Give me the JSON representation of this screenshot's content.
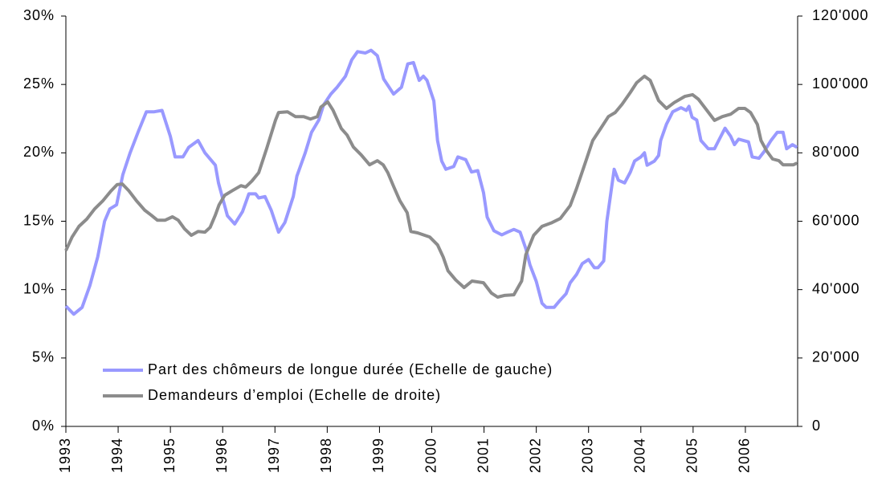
{
  "chart_data": {
    "type": "line",
    "xlim": [
      1993,
      2007
    ],
    "xticks": [
      1993,
      1994,
      1995,
      1996,
      1997,
      1998,
      1999,
      2000,
      2001,
      2002,
      2003,
      2004,
      2005,
      2006
    ],
    "ylim": [
      0,
      30
    ],
    "yticks": [
      {
        "value": 0,
        "label": "0%"
      },
      {
        "value": 5,
        "label": "5%"
      },
      {
        "value": 10,
        "label": "10%"
      },
      {
        "value": 15,
        "label": "15%"
      },
      {
        "value": 20,
        "label": "20%"
      },
      {
        "value": 25,
        "label": "25%"
      },
      {
        "value": 30,
        "label": "30%"
      }
    ],
    "y2lim": [
      0,
      120000
    ],
    "y2ticks": [
      0,
      {
        "value": 20000,
        "label": "20'000"
      },
      {
        "value": 40000,
        "label": "40'000"
      },
      {
        "value": 60000,
        "label": "60'000"
      },
      {
        "value": 80000,
        "label": "80'000"
      },
      {
        "value": 100000,
        "label": "100'000"
      },
      {
        "value": 120000,
        "label": "120'000"
      }
    ],
    "legend": "lower-left",
    "series": [
      {
        "name": "Part des chômeurs de longue durée (Echelle de gauche)",
        "color": "#9999ff",
        "x": [
          1993.0,
          1993.15,
          1993.31,
          1993.46,
          1993.61,
          1993.74,
          1993.84,
          1993.97,
          1994.09,
          1994.23,
          1994.38,
          1994.54,
          1994.69,
          1994.84,
          1995.0,
          1995.09,
          1995.24,
          1995.35,
          1995.53,
          1995.66,
          1995.86,
          1995.92,
          1996.09,
          1996.23,
          1996.38,
          1996.5,
          1996.63,
          1996.69,
          1996.81,
          1996.93,
          1997.07,
          1997.19,
          1997.35,
          1997.42,
          1997.58,
          1997.7,
          1997.84,
          1997.93,
          1998.07,
          1998.19,
          1998.35,
          1998.47,
          1998.58,
          1998.73,
          1998.84,
          1998.96,
          1999.08,
          1999.27,
          1999.42,
          1999.54,
          1999.65,
          1999.76,
          1999.84,
          1999.91,
          2000.04,
          2000.11,
          2000.19,
          2000.27,
          2000.42,
          2000.5,
          2000.65,
          2000.76,
          2000.88,
          2000.99,
          2001.06,
          2001.19,
          2001.34,
          2001.45,
          2001.57,
          2001.69,
          2001.8,
          2001.88,
          2002.0,
          2002.11,
          2002.19,
          2002.34,
          2002.45,
          2002.57,
          2002.65,
          2002.77,
          2002.88,
          2003.0,
          2003.11,
          2003.18,
          2003.29,
          2003.35,
          2003.49,
          2003.57,
          2003.69,
          2003.8,
          2003.88,
          2004.0,
          2004.07,
          2004.12,
          2004.26,
          2004.34,
          2004.38,
          2004.49,
          2004.61,
          2004.77,
          2004.87,
          2004.92,
          2004.98,
          2005.07,
          2005.15,
          2005.29,
          2005.41,
          2005.49,
          2005.61,
          2005.72,
          2005.79,
          2005.87,
          2006.06,
          2006.13,
          2006.26,
          2006.36,
          2006.49,
          2006.61,
          2006.72,
          2006.79,
          2006.9,
          2006.99
        ],
        "values": [
          8.8,
          8.2,
          8.7,
          10.3,
          12.4,
          15.0,
          15.9,
          16.2,
          18.4,
          20.0,
          21.5,
          23.0,
          23.0,
          23.1,
          21.2,
          19.7,
          19.7,
          20.4,
          20.9,
          20.0,
          19.1,
          17.8,
          15.4,
          14.8,
          15.7,
          17.0,
          17.0,
          16.7,
          16.8,
          15.8,
          14.2,
          14.9,
          16.8,
          18.3,
          20.0,
          21.5,
          22.4,
          23.5,
          24.3,
          24.8,
          25.6,
          26.8,
          27.4,
          27.3,
          27.5,
          27.1,
          25.4,
          24.3,
          24.8,
          26.5,
          26.6,
          25.3,
          25.6,
          25.3,
          23.8,
          20.9,
          19.4,
          18.8,
          19.0,
          19.7,
          19.5,
          18.6,
          18.7,
          17.1,
          15.3,
          14.3,
          14.0,
          14.2,
          14.4,
          14.2,
          13.0,
          11.8,
          10.6,
          9.0,
          8.7,
          8.7,
          9.2,
          9.7,
          10.5,
          11.1,
          11.9,
          12.2,
          11.6,
          11.6,
          12.1,
          15.0,
          18.8,
          18.0,
          17.8,
          18.6,
          19.4,
          19.7,
          20.0,
          19.1,
          19.4,
          19.8,
          20.9,
          22.1,
          23.0,
          23.3,
          23.1,
          23.4,
          22.6,
          22.4,
          20.9,
          20.3,
          20.3,
          20.9,
          21.8,
          21.2,
          20.6,
          21.0,
          20.8,
          19.7,
          19.6,
          20.1,
          20.9,
          21.5,
          21.5,
          20.3,
          20.6,
          20.4
        ]
      },
      {
        "name": "Demandeurs d’emploi (Echelle de droite)",
        "color": "#8c8c8c",
        "axis": "y2",
        "x": [
          1993.0,
          1993.12,
          1993.25,
          1993.4,
          1993.55,
          1993.71,
          1993.86,
          1993.98,
          1994.08,
          1994.2,
          1994.35,
          1994.51,
          1994.63,
          1994.75,
          1994.9,
          1995.04,
          1995.15,
          1995.27,
          1995.4,
          1995.53,
          1995.66,
          1995.76,
          1995.86,
          1995.93,
          1996.04,
          1996.19,
          1996.35,
          1996.44,
          1996.56,
          1996.69,
          1996.84,
          1997.01,
          1997.07,
          1997.24,
          1997.39,
          1997.55,
          1997.68,
          1997.81,
          1997.88,
          1998.01,
          1998.11,
          1998.27,
          1998.38,
          1998.5,
          1998.65,
          1998.81,
          1998.96,
          1999.07,
          1999.16,
          1999.27,
          1999.39,
          1999.53,
          1999.6,
          1999.73,
          1999.96,
          2000.11,
          2000.22,
          2000.31,
          2000.46,
          2000.62,
          2000.77,
          2000.99,
          2001.14,
          2001.26,
          2001.39,
          2001.57,
          2001.72,
          2001.8,
          2001.95,
          2002.11,
          2002.3,
          2002.46,
          2002.65,
          2002.77,
          2002.95,
          2003.08,
          2003.23,
          2003.38,
          2003.51,
          2003.64,
          2003.8,
          2003.92,
          2004.07,
          2004.18,
          2004.34,
          2004.49,
          2004.64,
          2004.84,
          2004.99,
          2005.1,
          2005.26,
          2005.41,
          2005.56,
          2005.72,
          2005.87,
          2005.99,
          2006.1,
          2006.23,
          2006.3,
          2006.41,
          2006.52,
          2006.64,
          2006.72,
          2006.92,
          2006.99
        ],
        "values": [
          51400,
          55400,
          58500,
          60600,
          63600,
          66000,
          68800,
          70700,
          70900,
          69000,
          66000,
          63200,
          61800,
          60300,
          60300,
          61300,
          60300,
          57800,
          55900,
          57000,
          56800,
          58200,
          61800,
          64800,
          67600,
          69000,
          70400,
          70000,
          71800,
          74200,
          81200,
          89500,
          91800,
          92000,
          90600,
          90600,
          89900,
          90600,
          93400,
          94900,
          92500,
          87100,
          85200,
          81700,
          79400,
          76500,
          77700,
          76500,
          74200,
          70200,
          66000,
          62500,
          57000,
          56600,
          55400,
          53100,
          49500,
          45500,
          42800,
          40600,
          42500,
          42000,
          39000,
          37800,
          38300,
          38500,
          42500,
          50200,
          55900,
          58500,
          59600,
          60800,
          64600,
          69500,
          77700,
          83600,
          87100,
          90600,
          91800,
          94200,
          97700,
          100500,
          102400,
          101200,
          95300,
          93000,
          94700,
          96500,
          97000,
          95700,
          92500,
          89500,
          90600,
          91300,
          93000,
          93000,
          91800,
          88300,
          83600,
          80500,
          78200,
          77700,
          76500,
          76500,
          77000
        ]
      }
    ]
  }
}
